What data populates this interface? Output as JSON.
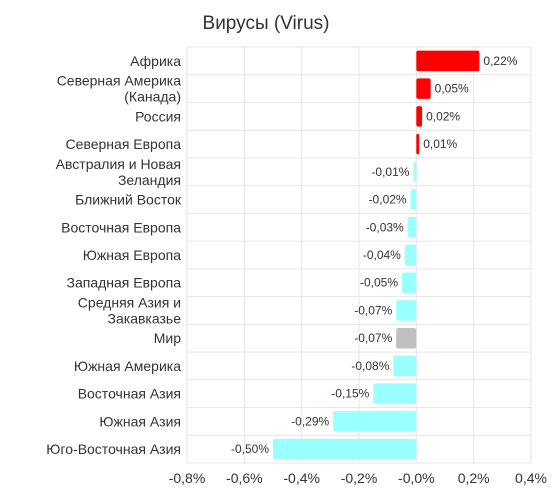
{
  "chart_data": {
    "type": "bar",
    "orientation": "horizontal",
    "title": "Вирусы (Virus)",
    "categories": [
      [
        "Африка"
      ],
      [
        "Северная Америка",
        "(Канада)"
      ],
      [
        "Россия"
      ],
      [
        "Северная Европа"
      ],
      [
        "Австралия и Новая",
        "Зеландия"
      ],
      [
        "Ближний Восток"
      ],
      [
        "Восточная Европа"
      ],
      [
        "Южная Европа"
      ],
      [
        "Западная Европа"
      ],
      [
        "Средняя Азия и",
        "Закавказье"
      ],
      [
        "Мир"
      ],
      [
        "Южная Америка"
      ],
      [
        "Восточная Азия"
      ],
      [
        "Южная Азия"
      ],
      [
        "Юго-Восточная Азия"
      ]
    ],
    "values": [
      0.22,
      0.05,
      0.02,
      0.01,
      -0.01,
      -0.02,
      -0.03,
      -0.04,
      -0.05,
      -0.07,
      -0.07,
      -0.08,
      -0.15,
      -0.29,
      -0.5
    ],
    "value_labels": [
      "0,22%",
      "0,05%",
      "0,02%",
      "0,01%",
      "-0,01%",
      "-0,02%",
      "-0,03%",
      "-0,04%",
      "-0,05%",
      "-0,07%",
      "-0,07%",
      "-0,08%",
      "-0,15%",
      "-0,29%",
      "-0,50%"
    ],
    "colors": {
      "positive": "#ff0000",
      "negative": "#99ffff",
      "highlight": "#c0c0c0",
      "highlight_category": "Мир"
    },
    "xlim": [
      -0.8,
      0.4
    ],
    "xticks": [
      -0.8,
      -0.6,
      -0.4,
      -0.2,
      0.0,
      0.2,
      0.4
    ],
    "xtick_labels": [
      "-0,8%",
      "-0,6%",
      "-0,4%",
      "-0,2%",
      "-0,0%",
      "0,2%",
      "0,4%"
    ],
    "grid": true,
    "legend": "none"
  }
}
